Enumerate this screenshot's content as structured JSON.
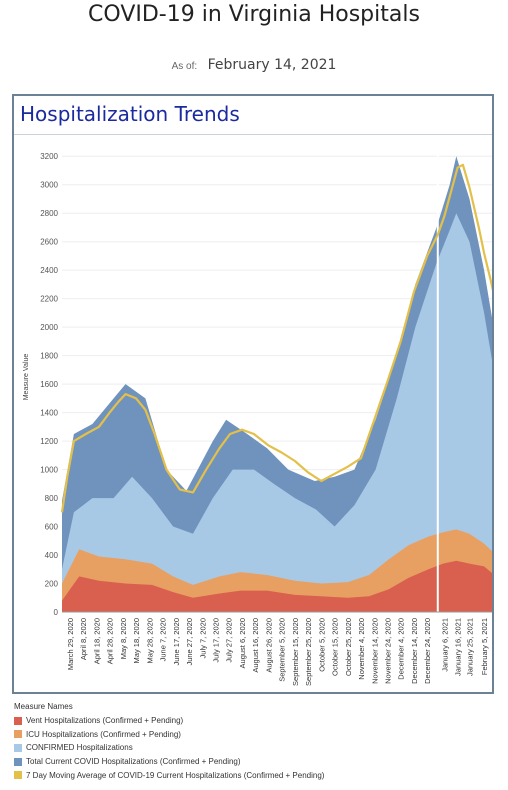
{
  "header": {
    "title": "COVID-19 in Virginia Hospitals",
    "as_of_label": "As of:",
    "as_of_date": "February 14, 2021"
  },
  "panel": {
    "title": "Hospitalization Trends"
  },
  "colors": {
    "vent": "#d9604f",
    "icu": "#e8a062",
    "confirmed": "#a8c9e6",
    "total": "#6f93bd",
    "avg": "#e3c04a",
    "frame": "#6a8196",
    "title": "#1b2a9e"
  },
  "legend": {
    "title": "Measure Names",
    "items": [
      {
        "label": "Vent Hospitalizations (Confirmed + Pending)",
        "color": "#d9604f"
      },
      {
        "label": "ICU Hospitalizations (Confirmed + Pending)",
        "color": "#e8a062"
      },
      {
        "label": "CONFIRMED Hospitalizations",
        "color": "#a8c9e6"
      },
      {
        "label": "Total Current COVID Hospitalizations (Confirmed + Pending)",
        "color": "#6f93bd"
      },
      {
        "label": "7 Day Moving Average of COVID-19 Current Hospitalizations (Confirmed + Pending)",
        "color": "#e3c04a"
      }
    ]
  },
  "chart_data": {
    "type": "area",
    "ylabel": "Measure Value",
    "ylim": [
      0,
      3300
    ],
    "yticks": [
      0,
      200,
      400,
      600,
      800,
      1000,
      1200,
      1400,
      1600,
      1800,
      2000,
      2200,
      2400,
      2600,
      2800,
      3000,
      3200
    ],
    "x_start": "2020-03-23",
    "x_end": "2021-02-14",
    "xtick_labels": [
      "March 29, 2020",
      "April 8, 2020",
      "April 18, 2020",
      "April 28, 2020",
      "May 8, 2020",
      "May 18, 2020",
      "May 28, 2020",
      "June 7, 2020",
      "June 17, 2020",
      "June 27, 2020",
      "July 7, 2020",
      "July 17, 2020",
      "July 27, 2020",
      "August 6, 2020",
      "August 16, 2020",
      "August 26, 2020",
      "September 5, 2020",
      "September 15, 2020",
      "September 25, 2020",
      "October 5, 2020",
      "October 15, 2020",
      "October 25, 2020",
      "November 4, 2020",
      "November 14, 2020",
      "November 24, 2020",
      "December 4, 2020",
      "December 14, 2020",
      "December 24, 2020",
      "January 6, 2021",
      "January 16, 2021",
      "January 25, 2021",
      "February 5, 2021"
    ],
    "xtick_dates": [
      "2020-03-29",
      "2020-04-08",
      "2020-04-18",
      "2020-04-28",
      "2020-05-08",
      "2020-05-18",
      "2020-05-28",
      "2020-06-07",
      "2020-06-17",
      "2020-06-27",
      "2020-07-07",
      "2020-07-17",
      "2020-07-27",
      "2020-08-06",
      "2020-08-16",
      "2020-08-26",
      "2020-09-05",
      "2020-09-15",
      "2020-09-25",
      "2020-10-05",
      "2020-10-15",
      "2020-10-25",
      "2020-11-04",
      "2020-11-14",
      "2020-11-24",
      "2020-12-04",
      "2020-12-14",
      "2020-12-24",
      "2021-01-06",
      "2021-01-16",
      "2021-01-25",
      "2021-02-05"
    ],
    "reference_line_date": "2021-01-01",
    "series": [
      {
        "name": "Vent Hospitalizations (Confirmed + Pending)",
        "dates": [
          "2020-03-23",
          "2020-04-05",
          "2020-04-20",
          "2020-05-10",
          "2020-05-30",
          "2020-06-15",
          "2020-06-30",
          "2020-07-20",
          "2020-08-05",
          "2020-08-25",
          "2020-09-15",
          "2020-10-05",
          "2020-10-25",
          "2020-11-10",
          "2020-11-25",
          "2020-12-10",
          "2020-12-25",
          "2021-01-05",
          "2021-01-15",
          "2021-01-25",
          "2021-02-05",
          "2021-02-14"
        ],
        "values": [
          80,
          250,
          220,
          200,
          190,
          140,
          100,
          130,
          150,
          150,
          120,
          110,
          100,
          110,
          160,
          240,
          300,
          340,
          360,
          340,
          320,
          250
        ]
      },
      {
        "name": "ICU Hospitalizations (Confirmed + Pending)",
        "dates": [
          "2020-03-23",
          "2020-04-05",
          "2020-04-20",
          "2020-05-10",
          "2020-05-30",
          "2020-06-15",
          "2020-06-30",
          "2020-07-20",
          "2020-08-05",
          "2020-08-25",
          "2020-09-15",
          "2020-10-05",
          "2020-10-25",
          "2020-11-10",
          "2020-11-25",
          "2020-12-10",
          "2020-12-25",
          "2021-01-05",
          "2021-01-15",
          "2021-01-25",
          "2021-02-05",
          "2021-02-14"
        ],
        "values": [
          200,
          440,
          390,
          370,
          340,
          250,
          190,
          250,
          280,
          260,
          220,
          200,
          210,
          260,
          370,
          470,
          530,
          560,
          580,
          550,
          480,
          400
        ]
      },
      {
        "name": "CONFIRMED Hospitalizations",
        "dates": [
          "2020-03-23",
          "2020-04-01",
          "2020-04-15",
          "2020-05-01",
          "2020-05-15",
          "2020-05-30",
          "2020-06-15",
          "2020-06-30",
          "2020-07-15",
          "2020-07-30",
          "2020-08-15",
          "2020-08-30",
          "2020-09-15",
          "2020-10-01",
          "2020-10-15",
          "2020-10-30",
          "2020-11-15",
          "2020-12-01",
          "2020-12-15",
          "2020-12-31",
          "2021-01-10",
          "2021-01-15",
          "2021-01-25",
          "2021-02-05",
          "2021-02-14"
        ],
        "values": [
          300,
          700,
          800,
          800,
          950,
          800,
          600,
          550,
          800,
          1000,
          1000,
          900,
          800,
          720,
          600,
          750,
          1000,
          1500,
          2000,
          2450,
          2680,
          2800,
          2600,
          2100,
          1600
        ]
      },
      {
        "name": "Total Current COVID Hospitalizations (Confirmed + Pending)",
        "dates": [
          "2020-03-23",
          "2020-04-01",
          "2020-04-15",
          "2020-05-01",
          "2020-05-10",
          "2020-05-25",
          "2020-06-10",
          "2020-06-25",
          "2020-07-15",
          "2020-07-25",
          "2020-08-10",
          "2020-08-25",
          "2020-09-10",
          "2020-09-30",
          "2020-10-15",
          "2020-10-30",
          "2020-11-15",
          "2020-12-01",
          "2020-12-15",
          "2020-12-31",
          "2021-01-10",
          "2021-01-15",
          "2021-01-25",
          "2021-02-05",
          "2021-02-14"
        ],
        "values": [
          780,
          1250,
          1320,
          1500,
          1600,
          1500,
          1000,
          850,
          1200,
          1350,
          1250,
          1150,
          1000,
          920,
          950,
          1000,
          1350,
          1800,
          2300,
          2700,
          3000,
          3200,
          2900,
          2400,
          1900
        ]
      },
      {
        "name": "7 Day Moving Average of COVID-19 Current Hospitalizations (Confirmed + Pending)",
        "dates": [
          "2020-03-23",
          "2020-03-27",
          "2020-04-01",
          "2020-04-10",
          "2020-04-20",
          "2020-04-28",
          "2020-05-05",
          "2020-05-10",
          "2020-05-18",
          "2020-05-25",
          "2020-06-01",
          "2020-06-10",
          "2020-06-20",
          "2020-06-30",
          "2020-07-10",
          "2020-07-20",
          "2020-07-28",
          "2020-08-06",
          "2020-08-15",
          "2020-08-26",
          "2020-09-05",
          "2020-09-15",
          "2020-09-25",
          "2020-10-05",
          "2020-10-15",
          "2020-10-25",
          "2020-11-04",
          "2020-11-14",
          "2020-11-24",
          "2020-12-04",
          "2020-12-14",
          "2020-12-24",
          "2021-01-01",
          "2021-01-06",
          "2021-01-11",
          "2021-01-16",
          "2021-01-20",
          "2021-01-25",
          "2021-02-01",
          "2021-02-05",
          "2021-02-10",
          "2021-02-14"
        ],
        "values": [
          700,
          950,
          1200,
          1250,
          1300,
          1400,
          1480,
          1530,
          1500,
          1420,
          1250,
          1000,
          860,
          840,
          1000,
          1150,
          1250,
          1280,
          1250,
          1170,
          1120,
          1060,
          980,
          920,
          970,
          1020,
          1080,
          1350,
          1620,
          1900,
          2250,
          2500,
          2650,
          2780,
          2950,
          3120,
          3140,
          2980,
          2700,
          2520,
          2330,
          2160
        ]
      }
    ]
  }
}
